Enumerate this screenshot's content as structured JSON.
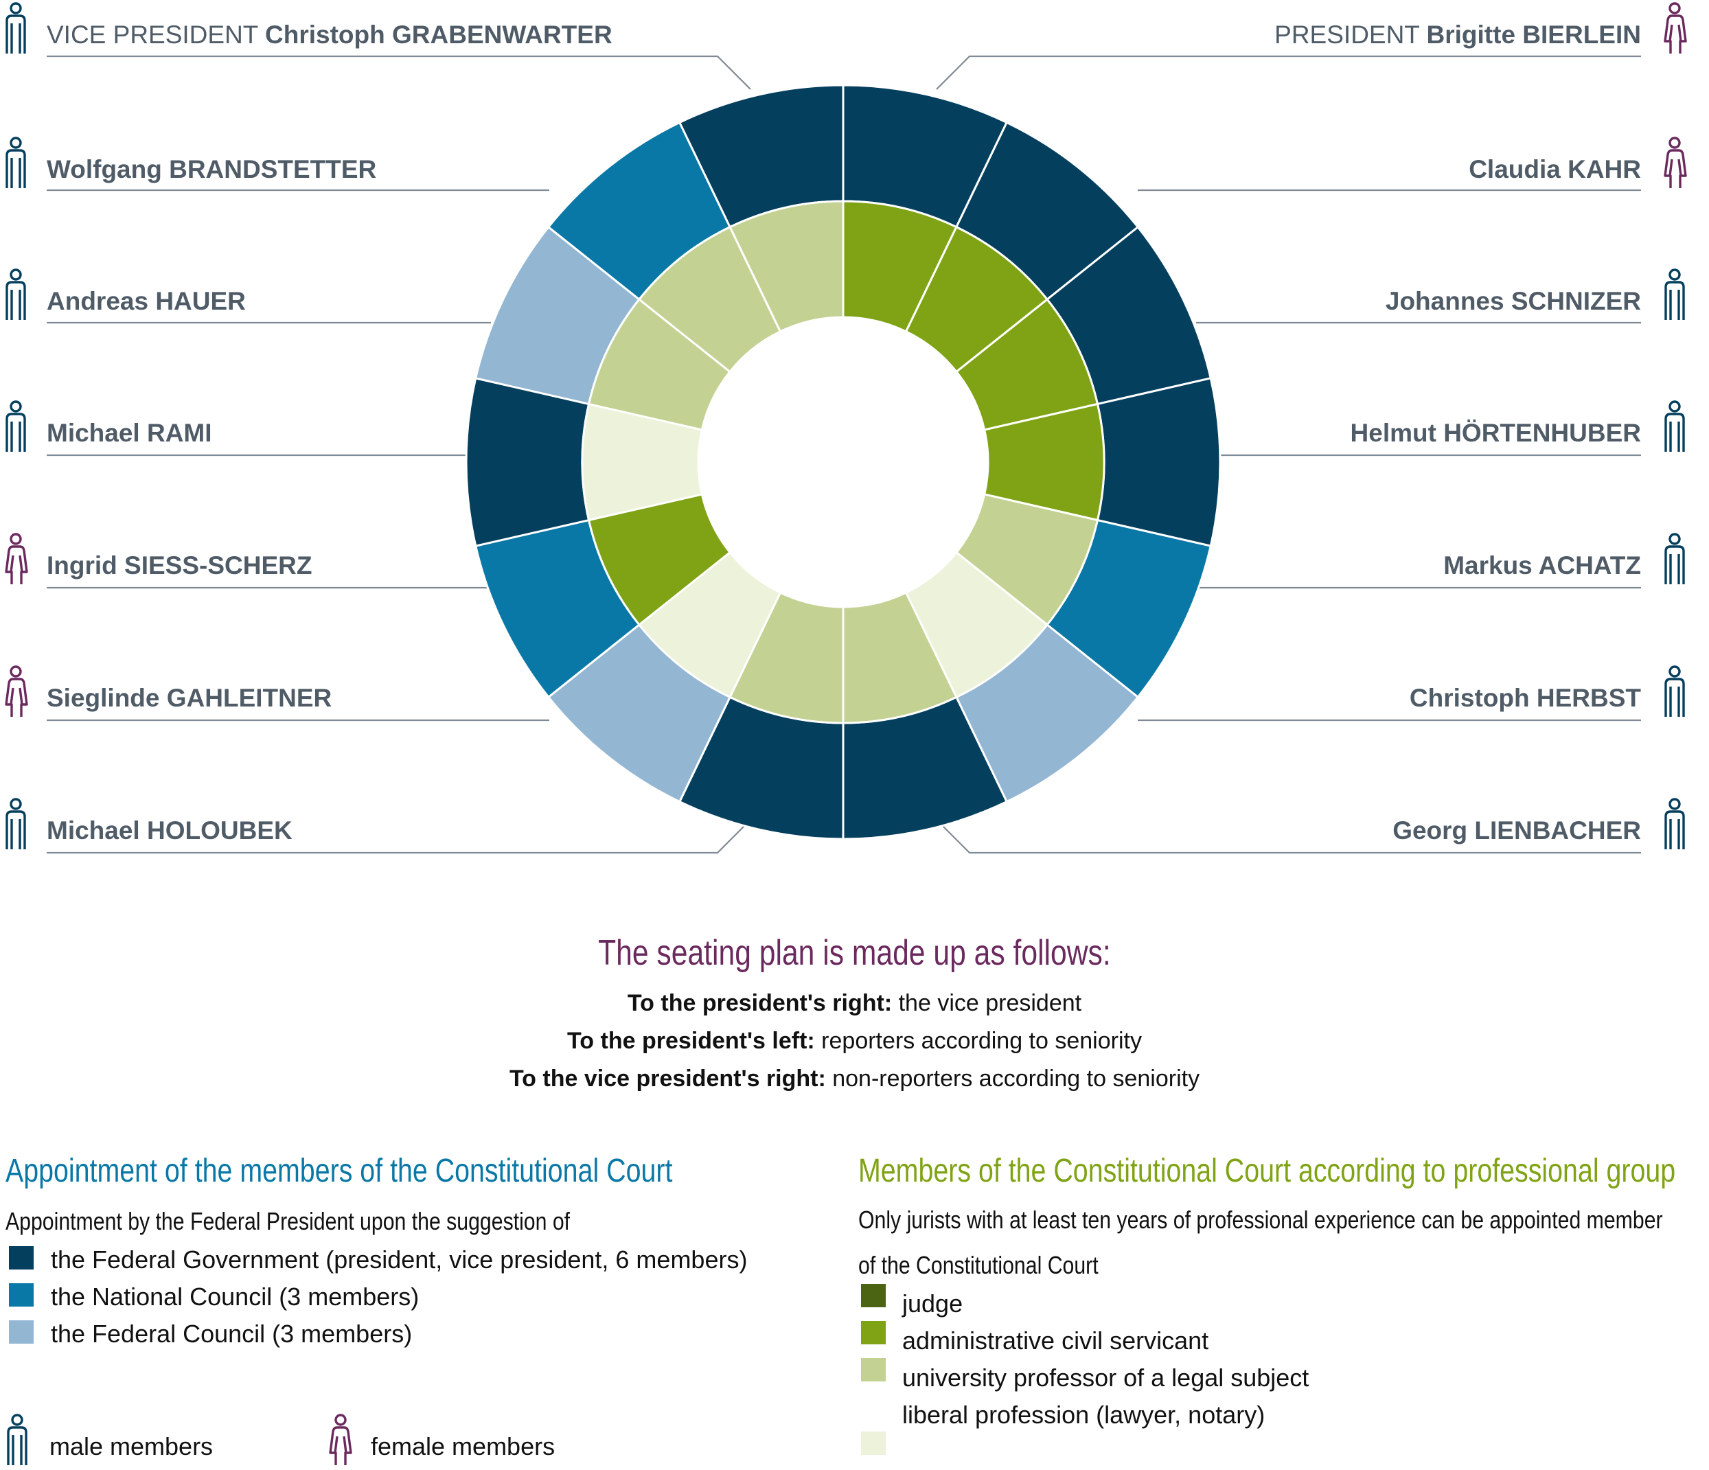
{
  "members": [
    {
      "side": "left",
      "prefix": "VICE PRESIDENT",
      "name": "Christoph GRABENWARTER",
      "gender": "male"
    },
    {
      "side": "left",
      "prefix": "",
      "name": "Wolfgang BRANDSTETTER",
      "gender": "male"
    },
    {
      "side": "left",
      "prefix": "",
      "name": "Andreas HAUER",
      "gender": "male"
    },
    {
      "side": "left",
      "prefix": "",
      "name": "Michael RAMI",
      "gender": "male"
    },
    {
      "side": "left",
      "prefix": "",
      "name": "Ingrid SIESS-SCHERZ",
      "gender": "female"
    },
    {
      "side": "left",
      "prefix": "",
      "name": "Sieglinde GAHLEITNER",
      "gender": "female"
    },
    {
      "side": "left",
      "prefix": "",
      "name": "Michael HOLOUBEK",
      "gender": "male"
    },
    {
      "side": "right",
      "prefix": "PRESIDENT",
      "name": "Brigitte BIERLEIN",
      "gender": "female"
    },
    {
      "side": "right",
      "prefix": "",
      "name": "Claudia KAHR",
      "gender": "female"
    },
    {
      "side": "right",
      "prefix": "",
      "name": "Johannes SCHNIZER",
      "gender": "male"
    },
    {
      "side": "right",
      "prefix": "",
      "name": "Helmut HÖRTENHUBER",
      "gender": "male"
    },
    {
      "side": "right",
      "prefix": "",
      "name": "Markus ACHATZ",
      "gender": "male"
    },
    {
      "side": "right",
      "prefix": "",
      "name": "Christoph HERBST",
      "gender": "male"
    },
    {
      "side": "right",
      "prefix": "",
      "name": "Georg LIENBACHER",
      "gender": "male"
    }
  ],
  "ring": {
    "outer": [
      "gov",
      "gov",
      "gov",
      "gov",
      "natc",
      "fedc",
      "gov",
      "gov",
      "fedc",
      "natc",
      "gov",
      "fedc",
      "natc",
      "gov"
    ],
    "inner": [
      "adm",
      "adm",
      "adm",
      "adm",
      "prof",
      "lib",
      "prof",
      "prof",
      "lib",
      "adm",
      "lib",
      "prof",
      "prof",
      "prof"
    ]
  },
  "colors": {
    "gov": "#053f5e",
    "natc": "#0a78a6",
    "fedc": "#93b6d3",
    "judge": "#4b6414",
    "adm": "#80a315",
    "prof": "#c3d293",
    "lib": "#edf2da",
    "male": "#053f5e",
    "female": "#6b2a5e",
    "appoint_title": "#0a78a6",
    "group_title": "#80a315",
    "seat_title": "#6b2a5e",
    "name_text": "#4f5b66",
    "leader": "#7f8a94"
  },
  "seating": {
    "title": "The seating plan is made up as follows:",
    "lines": [
      {
        "bold": "To the president's right:",
        "rest": " the vice president"
      },
      {
        "bold": "To the president's left:",
        "rest": " reporters according to seniority"
      },
      {
        "bold": "To the vice president's right:",
        "rest": " non-reporters according to seniority"
      }
    ]
  },
  "appointment": {
    "title": "Appointment of the members of the Constitutional Court",
    "subtitle": "Appointment by the Federal President upon the suggestion of",
    "items": [
      {
        "key": "gov",
        "label": "the Federal Government (president, vice president, 6 members)"
      },
      {
        "key": "natc",
        "label": "the National Council (3 members)"
      },
      {
        "key": "fedc",
        "label": "the Federal Council (3 members)"
      }
    ]
  },
  "gender_legend": {
    "male": "male members",
    "female": "female members"
  },
  "groups": {
    "title": "Members of the Constitutional Court according to professional group",
    "subtitle_1": "Only jurists with at least ten years of professional experience can be appointed member",
    "subtitle_2": "of the Constitutional Court",
    "items": [
      {
        "key": "judge",
        "label": "judge"
      },
      {
        "key": "adm",
        "label": "administrative civil servicant"
      },
      {
        "key": "prof",
        "label": "university professor of a legal subject"
      },
      {
        "key": "lib",
        "label": "liberal profession (lawyer, notary)"
      }
    ]
  }
}
